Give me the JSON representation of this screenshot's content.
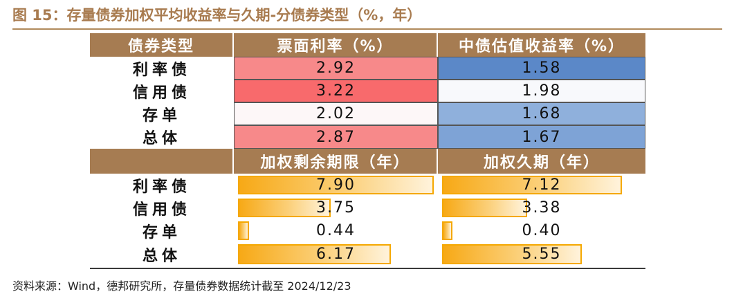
{
  "title": "图 15：存量债券加权平均收益率与久期-分债券类型（%，年）",
  "table1": {
    "headers": [
      "债券类型",
      "票面利率（%）",
      "中债估值收益率（%）"
    ],
    "rows": [
      {
        "type": "利率债",
        "coupon": "2.92",
        "yield": "1.58"
      },
      {
        "type": "信用债",
        "coupon": "3.22",
        "yield": "1.98"
      },
      {
        "type": "存单",
        "coupon": "2.02",
        "yield": "1.68"
      },
      {
        "type": "总体",
        "coupon": "2.87",
        "yield": "1.67"
      }
    ],
    "coupon_colors": [
      "#f7898a",
      "#f86a6c",
      "#fdf7f8",
      "#f7898a"
    ],
    "yield_colors": [
      "#5b88c8",
      "#f8f9fc",
      "#8fb0dc",
      "#7ea3d6"
    ]
  },
  "table2": {
    "headers": [
      "",
      "加权剩余期限（年）",
      "加权久期（年）"
    ],
    "rows": [
      {
        "type": "利率债",
        "maturity": "7.90",
        "duration": "7.12"
      },
      {
        "type": "信用债",
        "maturity": "3.75",
        "duration": "3.38"
      },
      {
        "type": "存单",
        "maturity": "0.44",
        "duration": "0.40"
      },
      {
        "type": "总体",
        "maturity": "6.17",
        "duration": "5.55"
      }
    ],
    "bar_max": 7.9
  },
  "source": "资料来源：Wind，德邦研究所，存量债券数据统计截至 2024/12/23"
}
